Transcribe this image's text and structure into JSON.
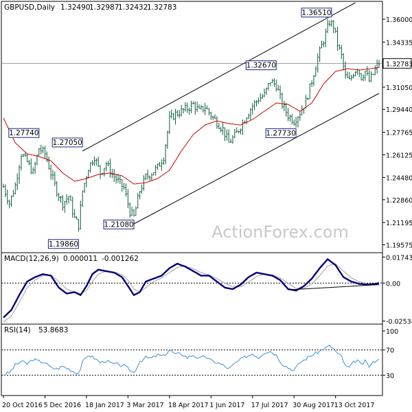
{
  "chart_data": [
    {
      "type": "candlestick",
      "panel": "price",
      "header": {
        "symbol_tf": "GBPUSD,Daily",
        "open": "1.32490",
        "high": "1.32987",
        "low": "1.32432",
        "close": "1.32783"
      },
      "ylim": [
        1.191,
        1.372
      ],
      "y_ticks": [
        "1.36000",
        "1.34335",
        "1.32783",
        "1.31050",
        "1.29440",
        "1.27765",
        "1.26125",
        "1.24480",
        "1.22860",
        "1.21195",
        "1.19575"
      ],
      "current_price": "1.32783",
      "annotations": [
        {
          "label": "1.27740",
          "date_index": 18,
          "value": 1.2774
        },
        {
          "label": "1.27050",
          "date_index": 40,
          "value": 1.2705
        },
        {
          "label": "1.19860",
          "date_index": 38,
          "value": 1.1986
        },
        {
          "label": "1.21080",
          "date_index": 66,
          "value": 1.2108
        },
        {
          "label": "1.32670",
          "date_index": 138,
          "value": 1.3267
        },
        {
          "label": "1.27730",
          "date_index": 148,
          "value": 1.2773
        },
        {
          "label": "1.36510",
          "date_index": 166,
          "value": 1.3651
        }
      ],
      "anchors": [
        [
          0,
          1.238
        ],
        [
          3,
          1.226
        ],
        [
          6,
          1.239
        ],
        [
          9,
          1.262
        ],
        [
          12,
          1.256
        ],
        [
          15,
          1.248
        ],
        [
          18,
          1.266
        ],
        [
          21,
          1.262
        ],
        [
          24,
          1.248
        ],
        [
          27,
          1.235
        ],
        [
          30,
          1.226
        ],
        [
          33,
          1.231
        ],
        [
          36,
          1.215
        ],
        [
          38,
          1.21
        ],
        [
          40,
          1.235
        ],
        [
          43,
          1.252
        ],
        [
          46,
          1.26
        ],
        [
          49,
          1.248
        ],
        [
          52,
          1.255
        ],
        [
          55,
          1.247
        ],
        [
          58,
          1.242
        ],
        [
          61,
          1.237
        ],
        [
          64,
          1.22
        ],
        [
          66,
          1.216
        ],
        [
          69,
          1.235
        ],
        [
          72,
          1.245
        ],
        [
          75,
          1.248
        ],
        [
          78,
          1.252
        ],
        [
          81,
          1.26
        ],
        [
          84,
          1.287
        ],
        [
          87,
          1.291
        ],
        [
          90,
          1.293
        ],
        [
          93,
          1.295
        ],
        [
          96,
          1.298
        ],
        [
          99,
          1.293
        ],
        [
          102,
          1.296
        ],
        [
          105,
          1.29
        ],
        [
          108,
          1.285
        ],
        [
          111,
          1.28
        ],
        [
          114,
          1.27
        ],
        [
          117,
          1.275
        ],
        [
          120,
          1.282
        ],
        [
          123,
          1.29
        ],
        [
          126,
          1.297
        ],
        [
          129,
          1.302
        ],
        [
          132,
          1.305
        ],
        [
          135,
          1.315
        ],
        [
          138,
          1.312
        ],
        [
          141,
          1.298
        ],
        [
          144,
          1.29
        ],
        [
          147,
          1.286
        ],
        [
          150,
          1.292
        ],
        [
          153,
          1.3
        ],
        [
          156,
          1.315
        ],
        [
          159,
          1.332
        ],
        [
          162,
          1.345
        ],
        [
          165,
          1.358
        ],
        [
          167,
          1.355
        ],
        [
          169,
          1.342
        ],
        [
          171,
          1.333
        ],
        [
          173,
          1.318
        ],
        [
          175,
          1.315
        ],
        [
          177,
          1.321
        ],
        [
          179,
          1.325
        ],
        [
          181,
          1.318
        ],
        [
          183,
          1.322
        ],
        [
          185,
          1.315
        ],
        [
          187,
          1.32
        ],
        [
          189,
          1.326
        ],
        [
          190,
          1.3278
        ]
      ],
      "moving_average": [
        [
          0,
          1.288
        ],
        [
          6,
          1.27
        ],
        [
          12,
          1.262
        ],
        [
          18,
          1.26
        ],
        [
          24,
          1.257
        ],
        [
          30,
          1.248
        ],
        [
          36,
          1.242
        ],
        [
          42,
          1.244
        ],
        [
          48,
          1.247
        ],
        [
          54,
          1.248
        ],
        [
          60,
          1.246
        ],
        [
          66,
          1.24
        ],
        [
          72,
          1.241
        ],
        [
          78,
          1.244
        ],
        [
          84,
          1.25
        ],
        [
          90,
          1.264
        ],
        [
          96,
          1.276
        ],
        [
          102,
          1.283
        ],
        [
          108,
          1.286
        ],
        [
          114,
          1.284
        ],
        [
          120,
          1.283
        ],
        [
          126,
          1.287
        ],
        [
          132,
          1.293
        ],
        [
          138,
          1.299
        ],
        [
          144,
          1.298
        ],
        [
          150,
          1.293
        ],
        [
          156,
          1.299
        ],
        [
          162,
          1.313
        ],
        [
          168,
          1.322
        ],
        [
          174,
          1.324
        ],
        [
          180,
          1.323
        ],
        [
          186,
          1.324
        ],
        [
          190,
          1.325
        ]
      ],
      "trend_channel": {
        "upper": [
          [
            40,
            1.264
          ],
          [
            178,
            1.372
          ]
        ],
        "lower": [
          [
            66,
            1.211
          ],
          [
            190,
            1.306
          ]
        ]
      },
      "horizontal_line": 1.32783,
      "watermark": "ActionForex.com"
    },
    {
      "type": "line",
      "panel": "macd",
      "header": {
        "name": "MACD(12,26,9)",
        "main": "0.000011",
        "signal": "-0.001262"
      },
      "ylim": [
        -0.0265,
        0.0185
      ],
      "y_ticks": [
        "0.017434",
        "0.00",
        "-0.025342"
      ],
      "zero_line": 0,
      "macd_line": [
        [
          0,
          -0.023
        ],
        [
          4,
          -0.018
        ],
        [
          8,
          -0.008
        ],
        [
          12,
          0.001
        ],
        [
          16,
          0.004
        ],
        [
          20,
          0.006
        ],
        [
          24,
          0.005
        ],
        [
          28,
          -0.003
        ],
        [
          32,
          -0.007
        ],
        [
          36,
          -0.006
        ],
        [
          39,
          -0.008
        ],
        [
          42,
          -0.002
        ],
        [
          45,
          0.006
        ],
        [
          48,
          0.009
        ],
        [
          52,
          0.008
        ],
        [
          56,
          0.007
        ],
        [
          60,
          0.004
        ],
        [
          63,
          -0.002
        ],
        [
          66,
          -0.008
        ],
        [
          69,
          -0.006
        ],
        [
          72,
          0.001
        ],
        [
          76,
          0.003
        ],
        [
          80,
          0.005
        ],
        [
          84,
          0.01
        ],
        [
          88,
          0.013
        ],
        [
          92,
          0.011
        ],
        [
          96,
          0.008
        ],
        [
          100,
          0.005
        ],
        [
          104,
          0.005
        ],
        [
          108,
          0.001
        ],
        [
          112,
          -0.003
        ],
        [
          116,
          -0.004
        ],
        [
          120,
          -0.001
        ],
        [
          124,
          0.004
        ],
        [
          128,
          0.007
        ],
        [
          132,
          0.006
        ],
        [
          136,
          0.005
        ],
        [
          140,
          0.002
        ],
        [
          144,
          -0.004
        ],
        [
          148,
          -0.005
        ],
        [
          152,
          -0.002
        ],
        [
          156,
          0.003
        ],
        [
          160,
          0.01
        ],
        [
          164,
          0.016
        ],
        [
          168,
          0.012
        ],
        [
          172,
          0.004
        ],
        [
          176,
          0.001
        ],
        [
          180,
          -0.0005
        ],
        [
          184,
          -0.001
        ],
        [
          188,
          -0.0005
        ],
        [
          190,
          0.0
        ]
      ],
      "signal_line": [
        [
          0,
          -0.026
        ],
        [
          4,
          -0.022
        ],
        [
          8,
          -0.013
        ],
        [
          12,
          -0.003
        ],
        [
          16,
          0.002
        ],
        [
          20,
          0.005
        ],
        [
          24,
          0.0055
        ],
        [
          28,
          0.001
        ],
        [
          32,
          -0.004
        ],
        [
          36,
          -0.006
        ],
        [
          39,
          -0.007
        ],
        [
          42,
          -0.005
        ],
        [
          45,
          0.001
        ],
        [
          48,
          0.006
        ],
        [
          52,
          0.008
        ],
        [
          56,
          0.0075
        ],
        [
          60,
          0.0055
        ],
        [
          63,
          0.002
        ],
        [
          66,
          -0.004
        ],
        [
          69,
          -0.006
        ],
        [
          72,
          -0.003
        ],
        [
          76,
          0.001
        ],
        [
          80,
          0.0035
        ],
        [
          84,
          0.007
        ],
        [
          88,
          0.0105
        ],
        [
          92,
          0.0115
        ],
        [
          96,
          0.0095
        ],
        [
          100,
          0.007
        ],
        [
          104,
          0.0055
        ],
        [
          108,
          0.003
        ],
        [
          112,
          0.0
        ],
        [
          116,
          -0.0025
        ],
        [
          120,
          -0.0025
        ],
        [
          124,
          0.0005
        ],
        [
          128,
          0.0045
        ],
        [
          132,
          0.006
        ],
        [
          136,
          0.0055
        ],
        [
          140,
          0.0035
        ],
        [
          144,
          0.0
        ],
        [
          148,
          -0.0035
        ],
        [
          152,
          -0.0035
        ],
        [
          156,
          -0.0005
        ],
        [
          160,
          0.005
        ],
        [
          164,
          0.0115
        ],
        [
          168,
          0.013
        ],
        [
          172,
          0.008
        ],
        [
          176,
          0.0035
        ],
        [
          180,
          0.001
        ],
        [
          184,
          -0.0005
        ],
        [
          188,
          -0.001
        ],
        [
          190,
          -0.0013
        ]
      ],
      "support_line": [
        [
          144,
          -0.0045
        ],
        [
          190,
          -0.001
        ]
      ]
    },
    {
      "type": "line",
      "panel": "rsi",
      "header": {
        "name": "RSI(14)",
        "value": "53.8683"
      },
      "ylim": [
        0,
        100
      ],
      "y_ticks": [
        "100",
        "70",
        "30",
        "0"
      ],
      "levels": [
        70,
        30
      ],
      "rsi_line": [
        [
          0,
          31
        ],
        [
          3,
          34
        ],
        [
          6,
          46
        ],
        [
          9,
          52
        ],
        [
          12,
          48
        ],
        [
          15,
          55
        ],
        [
          18,
          52
        ],
        [
          21,
          50
        ],
        [
          24,
          42
        ],
        [
          27,
          40
        ],
        [
          30,
          44
        ],
        [
          33,
          40
        ],
        [
          36,
          35
        ],
        [
          38,
          33
        ],
        [
          40,
          50
        ],
        [
          43,
          62
        ],
        [
          46,
          57
        ],
        [
          49,
          50
        ],
        [
          52,
          53
        ],
        [
          55,
          48
        ],
        [
          58,
          47
        ],
        [
          61,
          45
        ],
        [
          64,
          38
        ],
        [
          66,
          34
        ],
        [
          69,
          52
        ],
        [
          72,
          58
        ],
        [
          75,
          57
        ],
        [
          78,
          62
        ],
        [
          81,
          60
        ],
        [
          84,
          70
        ],
        [
          87,
          63
        ],
        [
          90,
          64
        ],
        [
          93,
          58
        ],
        [
          96,
          62
        ],
        [
          99,
          56
        ],
        [
          102,
          60
        ],
        [
          105,
          53
        ],
        [
          108,
          50
        ],
        [
          111,
          46
        ],
        [
          114,
          40
        ],
        [
          117,
          48
        ],
        [
          120,
          55
        ],
        [
          123,
          60
        ],
        [
          126,
          64
        ],
        [
          129,
          58
        ],
        [
          132,
          66
        ],
        [
          135,
          68
        ],
        [
          138,
          62
        ],
        [
          141,
          48
        ],
        [
          144,
          42
        ],
        [
          147,
          38
        ],
        [
          150,
          50
        ],
        [
          153,
          56
        ],
        [
          156,
          62
        ],
        [
          159,
          66
        ],
        [
          162,
          72
        ],
        [
          165,
          76
        ],
        [
          167,
          72
        ],
        [
          169,
          64
        ],
        [
          171,
          60
        ],
        [
          173,
          44
        ],
        [
          175,
          42
        ],
        [
          177,
          50
        ],
        [
          179,
          54
        ],
        [
          181,
          46
        ],
        [
          183,
          52
        ],
        [
          185,
          44
        ],
        [
          187,
          50
        ],
        [
          189,
          55
        ],
        [
          190,
          54
        ]
      ]
    }
  ],
  "x_axis": {
    "labels": [
      "20 Oct 2016",
      "5 Dec 2016",
      "18 Jan 2017",
      "3 Mar 2017",
      "18 Apr 2017",
      "1 Jun 2017",
      "17 Jul 2017",
      "30 Aug 2017",
      "13 Oct 2017"
    ],
    "label_indices": [
      0,
      21,
      42,
      63,
      84,
      105,
      126,
      147,
      168
    ],
    "range": [
      0,
      190
    ]
  },
  "colors": {
    "candle": "#0a5a3a",
    "ma": "#cc0000",
    "macd": "#00007a",
    "signal": "#a0a0a0",
    "rsi": "#3a8fd6",
    "frame": "#000000",
    "grid_ref": "#999999",
    "annotation_border": "#1a237e",
    "watermark": "#c8c8c8"
  }
}
